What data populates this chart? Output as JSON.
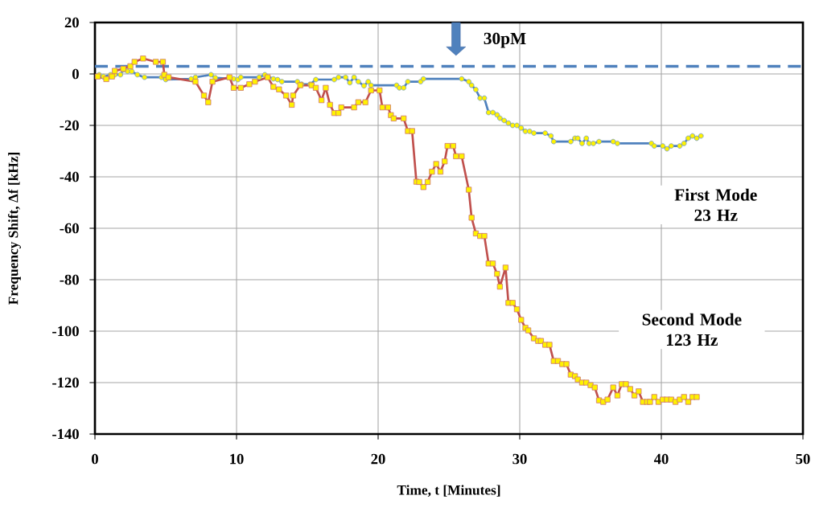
{
  "chart_data": {
    "type": "line",
    "xlabel": "Time, t [Minutes]",
    "ylabel": "Frequency Shift, Δf [kHz]",
    "xlim": [
      0,
      50
    ],
    "ylim": [
      -140,
      20
    ],
    "xticks": [
      0,
      10,
      20,
      30,
      40,
      50
    ],
    "yticks": [
      20,
      0,
      -20,
      -40,
      -60,
      -80,
      -100,
      -120,
      -140
    ],
    "grid": true,
    "legend": false,
    "ref_lines": [
      {
        "axis": "y",
        "value": 3,
        "color": "#4f81bd",
        "line_style": "dashed"
      }
    ],
    "annotations": [
      "30pM"
    ],
    "series": [
      {
        "name": "First Mode 23 Hz",
        "color": "#4f81bd",
        "marker": "circle",
        "x": [
          0.3,
          0.6,
          1.1,
          1.4,
          1.8,
          2.0,
          2.3,
          2.6,
          3.0,
          3.5,
          4.7,
          5.0,
          6.8,
          7.1,
          8.2,
          8.5,
          9.8,
          10.1,
          10.3,
          11.6,
          12.0,
          12.6,
          12.9,
          13.2,
          14.3,
          14.6,
          15.2,
          15.6,
          16.9,
          17.2,
          17.7,
          18.0,
          18.3,
          18.6,
          19.0,
          19.3,
          19.5,
          21.3,
          21.5,
          21.8,
          22.1,
          23.0,
          23.2,
          25.9,
          26.4,
          26.6,
          26.9,
          27.2,
          27.5,
          27.8,
          28.1,
          28.4,
          28.6,
          28.9,
          29.2,
          29.5,
          29.8,
          30.1,
          30.4,
          30.7,
          31.0,
          31.8,
          32.2,
          32.4,
          33.6,
          33.9,
          34.1,
          34.4,
          34.7,
          34.9,
          35.2,
          35.6,
          36.6,
          36.9,
          39.3,
          39.5,
          40.1,
          40.4,
          40.7,
          41.3,
          41.6,
          41.9,
          42.2,
          42.5,
          42.8
        ],
        "values": [
          -0.3,
          -1,
          -0.3,
          -0.3,
          -0.3,
          1.6,
          1,
          1,
          -0.3,
          -1.3,
          -1.3,
          -2.2,
          -1.9,
          -1.3,
          -0.3,
          -1.5,
          -1.9,
          -2.2,
          -1.3,
          -1.3,
          -0.3,
          -1.9,
          -2.2,
          -3,
          -3,
          -4,
          -4,
          -2.2,
          -2.2,
          -1.3,
          -1.3,
          -3.4,
          -1.3,
          -3,
          -4.6,
          -3,
          -4.4,
          -4.4,
          -5.4,
          -5.4,
          -3,
          -3,
          -1.9,
          -1.9,
          -3,
          -4.4,
          -6.1,
          -9.4,
          -9.4,
          -15,
          -15,
          -15.9,
          -17.2,
          -18.1,
          -19.1,
          -20,
          -20,
          -21,
          -22.3,
          -22.3,
          -23,
          -23,
          -24.1,
          -26.3,
          -26.3,
          -25,
          -25,
          -27,
          -25,
          -27,
          -27,
          -26.3,
          -26.3,
          -27,
          -27,
          -28,
          -28,
          -29.1,
          -28,
          -28,
          -27,
          -25,
          -24.1,
          -25,
          -24.1
        ]
      },
      {
        "name": "Second Mode 123 Hz",
        "color": "#c0504d",
        "marker": "square",
        "x": [
          0.2,
          0.8,
          1.2,
          1.4,
          2.0,
          2.5,
          2.8,
          3.4,
          4.3,
          4.8,
          4.9,
          5.2,
          7.1,
          7.7,
          8.0,
          8.3,
          9.5,
          9.8,
          10.3,
          10.9,
          11.3,
          12.2,
          12.6,
          13.0,
          13.5,
          13.9,
          14.0,
          14.5,
          15.3,
          15.6,
          16.0,
          16.3,
          16.6,
          16.9,
          17.2,
          17.4,
          18.3,
          18.6,
          19.1,
          19.5,
          20.1,
          20.3,
          20.7,
          20.9,
          21.1,
          21.8,
          22.1,
          22.4,
          22.7,
          22.9,
          23.2,
          23.5,
          23.8,
          24.1,
          24.4,
          24.7,
          24.9,
          25.3,
          25.5,
          25.9,
          26.4,
          26.6,
          26.9,
          27.2,
          27.5,
          27.8,
          28.1,
          28.4,
          28.6,
          29.0,
          29.2,
          29.5,
          29.8,
          30.1,
          30.4,
          30.6,
          31.0,
          31.3,
          31.5,
          31.8,
          32.1,
          32.4,
          32.7,
          33.0,
          33.3,
          33.6,
          33.9,
          34.1,
          34.4,
          34.7,
          35.0,
          35.3,
          35.6,
          35.9,
          36.2,
          36.6,
          36.9,
          37.2,
          37.5,
          37.8,
          38.1,
          38.4,
          38.7,
          39.0,
          39.2,
          39.5,
          39.8,
          40.1,
          40.4,
          40.7,
          41.0,
          41.3,
          41.6,
          41.9,
          42.2,
          42.5
        ],
        "values": [
          -1,
          -2,
          -1,
          1.2,
          2,
          3,
          4.7,
          6,
          4.7,
          4.7,
          -0.3,
          -1.3,
          -3,
          -8.4,
          -11,
          -3,
          -1.3,
          -5.4,
          -5.4,
          -4,
          -3,
          -1.3,
          -5,
          -6,
          -8.4,
          -12,
          -8.4,
          -4.4,
          -4.4,
          -5.4,
          -10.2,
          -5.4,
          -12,
          -15.2,
          -15.2,
          -13,
          -13,
          -11,
          -11,
          -6.4,
          -6.4,
          -13,
          -13,
          -16,
          -17.3,
          -17.3,
          -22.2,
          -22.2,
          -41.9,
          -42,
          -44,
          -42,
          -38,
          -35,
          -38,
          -34,
          -28,
          -28,
          -32,
          -32,
          -45,
          -55.9,
          -62,
          -63,
          -63,
          -73.7,
          -73.7,
          -77.7,
          -82.7,
          -75.3,
          -89,
          -89,
          -91.5,
          -95.6,
          -98.7,
          -99.7,
          -102.8,
          -103.8,
          -103.8,
          -105.3,
          -105.3,
          -111.6,
          -111.6,
          -112.8,
          -112.8,
          -116.9,
          -117.5,
          -118.8,
          -120,
          -120,
          -121,
          -121.9,
          -126.9,
          -127.5,
          -126.6,
          -121.9,
          -125,
          -120.6,
          -120.6,
          -122.5,
          -125,
          -123.4,
          -127.5,
          -127.5,
          -127.5,
          -125.6,
          -127.5,
          -126.6,
          -126.6,
          -126.6,
          -127.5,
          -126.6,
          -125.6,
          -127.5,
          -125.6,
          -125.6
        ]
      }
    ]
  }
}
